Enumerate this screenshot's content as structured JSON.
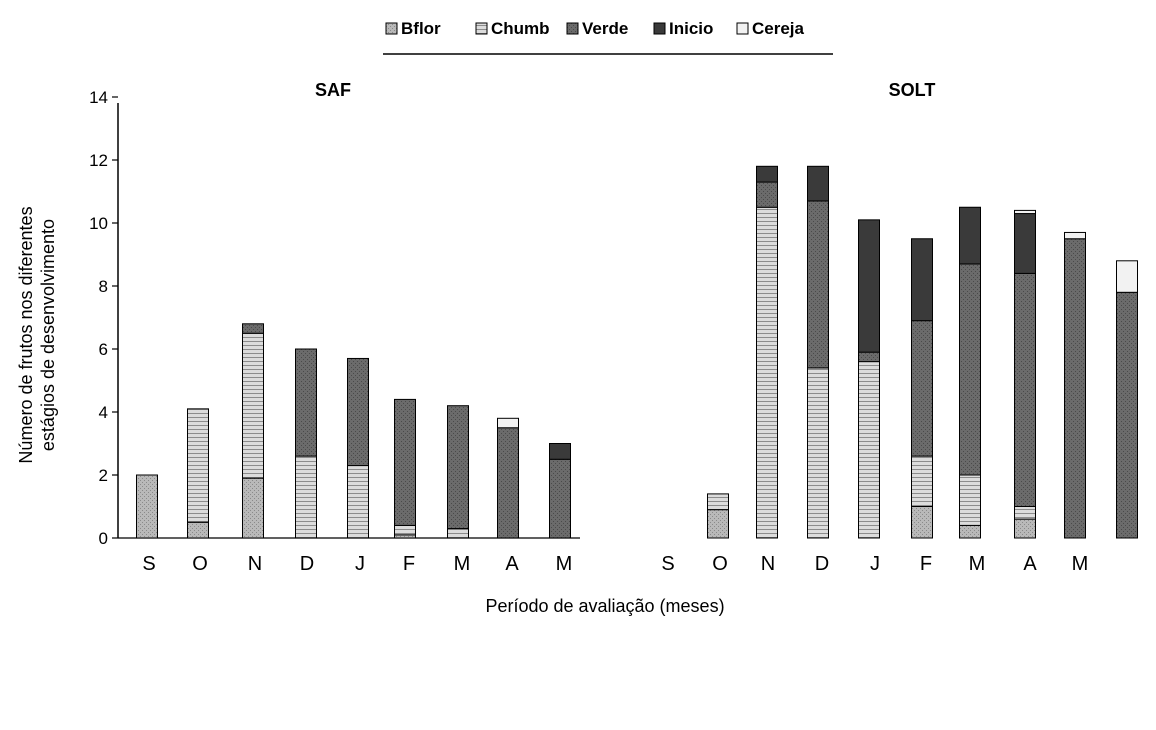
{
  "chart_data": {
    "type": "bar",
    "stacked": true,
    "legend_position": "top-center",
    "series_names": [
      "Bflor",
      "Chumb",
      "Verde",
      "Inicio",
      "Cereja"
    ],
    "colors": {
      "Bflor": "#b9b9b9",
      "Chumb": "#d7d7d7",
      "Verde": "#666666",
      "Inicio": "#3a3a3a",
      "Cereja": "#f2f2f2"
    },
    "ylabel": "Número de frutos nos diferentes estágios de desenvolvimento",
    "ylabel_lines": [
      "Número de frutos nos diferentes",
      "estágios de desenvolvimento"
    ],
    "xlabel": "Período de avaliação (meses)",
    "ylim": [
      0,
      14
    ],
    "yticks": [
      0,
      2,
      4,
      6,
      8,
      10,
      12,
      14
    ],
    "panels": [
      {
        "title": "SAF",
        "categories": [
          "S",
          "O",
          "N",
          "D",
          "J",
          "F",
          "M",
          "A",
          "M"
        ],
        "series": [
          {
            "name": "Bflor",
            "values": [
              2.0,
              0.5,
              1.9,
              0.0,
              0.0,
              0.1,
              0.0,
              0.0,
              0.0
            ]
          },
          {
            "name": "Chumb",
            "values": [
              0.0,
              3.6,
              4.6,
              2.6,
              2.3,
              0.3,
              0.3,
              0.0,
              0.0
            ]
          },
          {
            "name": "Verde",
            "values": [
              0.0,
              0.0,
              0.3,
              3.4,
              3.4,
              4.0,
              3.9,
              3.5,
              2.5
            ]
          },
          {
            "name": "Inicio",
            "values": [
              0.0,
              0.0,
              0.0,
              0.0,
              0.0,
              0.0,
              0.0,
              0.0,
              0.5
            ]
          },
          {
            "name": "Cereja",
            "values": [
              0.0,
              0.0,
              0.0,
              0.0,
              0.0,
              0.0,
              0.0,
              0.3,
              0.0
            ]
          }
        ]
      },
      {
        "title": "SOLT",
        "categories": [
          "S",
          "O",
          "N",
          "D",
          "J",
          "F",
          "M",
          "A",
          "M"
        ],
        "series": [
          {
            "name": "Bflor",
            "values": [
              0.9,
              0.0,
              0.0,
              0.0,
              1.0,
              0.4,
              0.6,
              0.0,
              0.0
            ]
          },
          {
            "name": "Chumb",
            "values": [
              0.5,
              10.5,
              5.4,
              5.6,
              1.6,
              1.6,
              0.4,
              0.0,
              0.0
            ]
          },
          {
            "name": "Verde",
            "values": [
              0.0,
              0.8,
              5.3,
              0.3,
              4.3,
              6.7,
              7.4,
              9.5,
              7.8
            ]
          },
          {
            "name": "Inicio",
            "values": [
              0.0,
              0.5,
              1.1,
              4.2,
              2.6,
              1.8,
              1.9,
              0.0,
              0.0
            ]
          },
          {
            "name": "Cereja",
            "values": [
              0.0,
              0.0,
              0.0,
              0.0,
              0.0,
              0.0,
              0.1,
              0.2,
              1.0
            ]
          }
        ]
      }
    ]
  }
}
